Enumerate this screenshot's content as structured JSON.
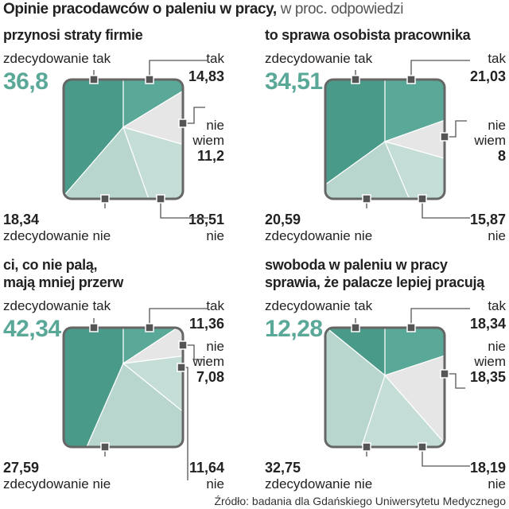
{
  "title": {
    "bold": "Opinie pracodawców o paleniu w pracy,",
    "light": "w proc. odpowiedzi"
  },
  "labels": {
    "zdecydowanie_tak": "zdecydowanie tak",
    "tak": "tak",
    "nie": "nie",
    "wiem": "wiem",
    "zdecydowanie_nie": "zdecydowanie nie"
  },
  "colors": {
    "zdecydowanie_tak": "#4a9a8a",
    "tak": "#5aa898",
    "nie_wiem": "#e6e6e6",
    "nie": "#c4ddd6",
    "zdecydowanie_nie": "#b8d6cd",
    "frame": "#666666"
  },
  "source": "Źródło: badania dla Gdańskiego Uniwersytetu Medycznego",
  "chart_data": [
    {
      "type": "pie",
      "title": [
        "przynosi straty firmie"
      ],
      "categories": [
        "zdecydowanie tak",
        "tak",
        "nie wiem",
        "nie",
        "zdecydowanie nie"
      ],
      "values": [
        36.8,
        14.83,
        11.2,
        18.51,
        18.34
      ],
      "value_labels": [
        "36,8",
        "14,83",
        "11,2",
        "18,51",
        "18,34"
      ]
    },
    {
      "type": "pie",
      "title": [
        "to sprawa osobista pracownika"
      ],
      "categories": [
        "zdecydowanie tak",
        "tak",
        "nie wiem",
        "nie",
        "zdecydowanie nie"
      ],
      "values": [
        34.51,
        21.03,
        8,
        15.87,
        20.59
      ],
      "value_labels": [
        "34,51",
        "21,03",
        "8",
        "15,87",
        "20,59"
      ]
    },
    {
      "type": "pie",
      "title": [
        "ci, co nie palą,",
        "mają mniej przerw"
      ],
      "categories": [
        "zdecydowanie tak",
        "tak",
        "nie wiem",
        "nie",
        "zdecydowanie nie"
      ],
      "values": [
        42.34,
        11.36,
        7.08,
        11.64,
        27.59
      ],
      "value_labels": [
        "42,34",
        "11,36",
        "7,08",
        "11,64",
        "27,59"
      ]
    },
    {
      "type": "pie",
      "title": [
        "swoboda w paleniu w pracy",
        "sprawia, że palacze lepiej pracują"
      ],
      "categories": [
        "zdecydowanie tak",
        "tak",
        "nie wiem",
        "nie",
        "zdecydowanie nie"
      ],
      "values": [
        12.28,
        18.34,
        18.35,
        18.19,
        32.75
      ],
      "value_labels": [
        "12,28",
        "18,34",
        "18,35",
        "18,19",
        "32,75"
      ]
    }
  ]
}
